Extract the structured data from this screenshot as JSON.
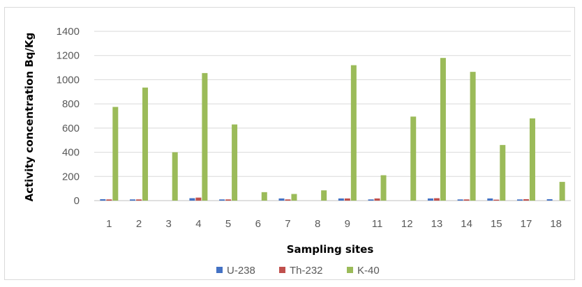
{
  "chart_data": {
    "type": "bar",
    "title": "",
    "xlabel": "Sampling sites",
    "ylabel": "Activity concentration Bq/Kg",
    "ylim": [
      0,
      1400
    ],
    "yticks": [
      "0",
      "200",
      "400",
      "600",
      "800",
      "1000",
      "1200",
      "1400"
    ],
    "categories": [
      "1",
      "2",
      "3",
      "4",
      "5",
      "6",
      "7",
      "8",
      "9",
      "11",
      "12",
      "13",
      "14",
      "15",
      "17",
      "18"
    ],
    "series": [
      {
        "name": "U-238",
        "color": "#4472C4",
        "values": [
          12,
          10,
          0,
          20,
          10,
          0,
          18,
          0,
          18,
          10,
          0,
          18,
          10,
          18,
          10,
          12
        ]
      },
      {
        "name": "Th-232",
        "color": "#C0504D",
        "values": [
          10,
          10,
          0,
          25,
          10,
          0,
          10,
          0,
          18,
          18,
          0,
          20,
          10,
          8,
          12,
          0
        ]
      },
      {
        "name": "K-40",
        "color": "#9BBB59",
        "values": [
          775,
          935,
          400,
          1055,
          630,
          70,
          55,
          85,
          1120,
          210,
          695,
          1180,
          1065,
          460,
          680,
          155
        ]
      }
    ],
    "grid": true,
    "legend": "bottom"
  }
}
